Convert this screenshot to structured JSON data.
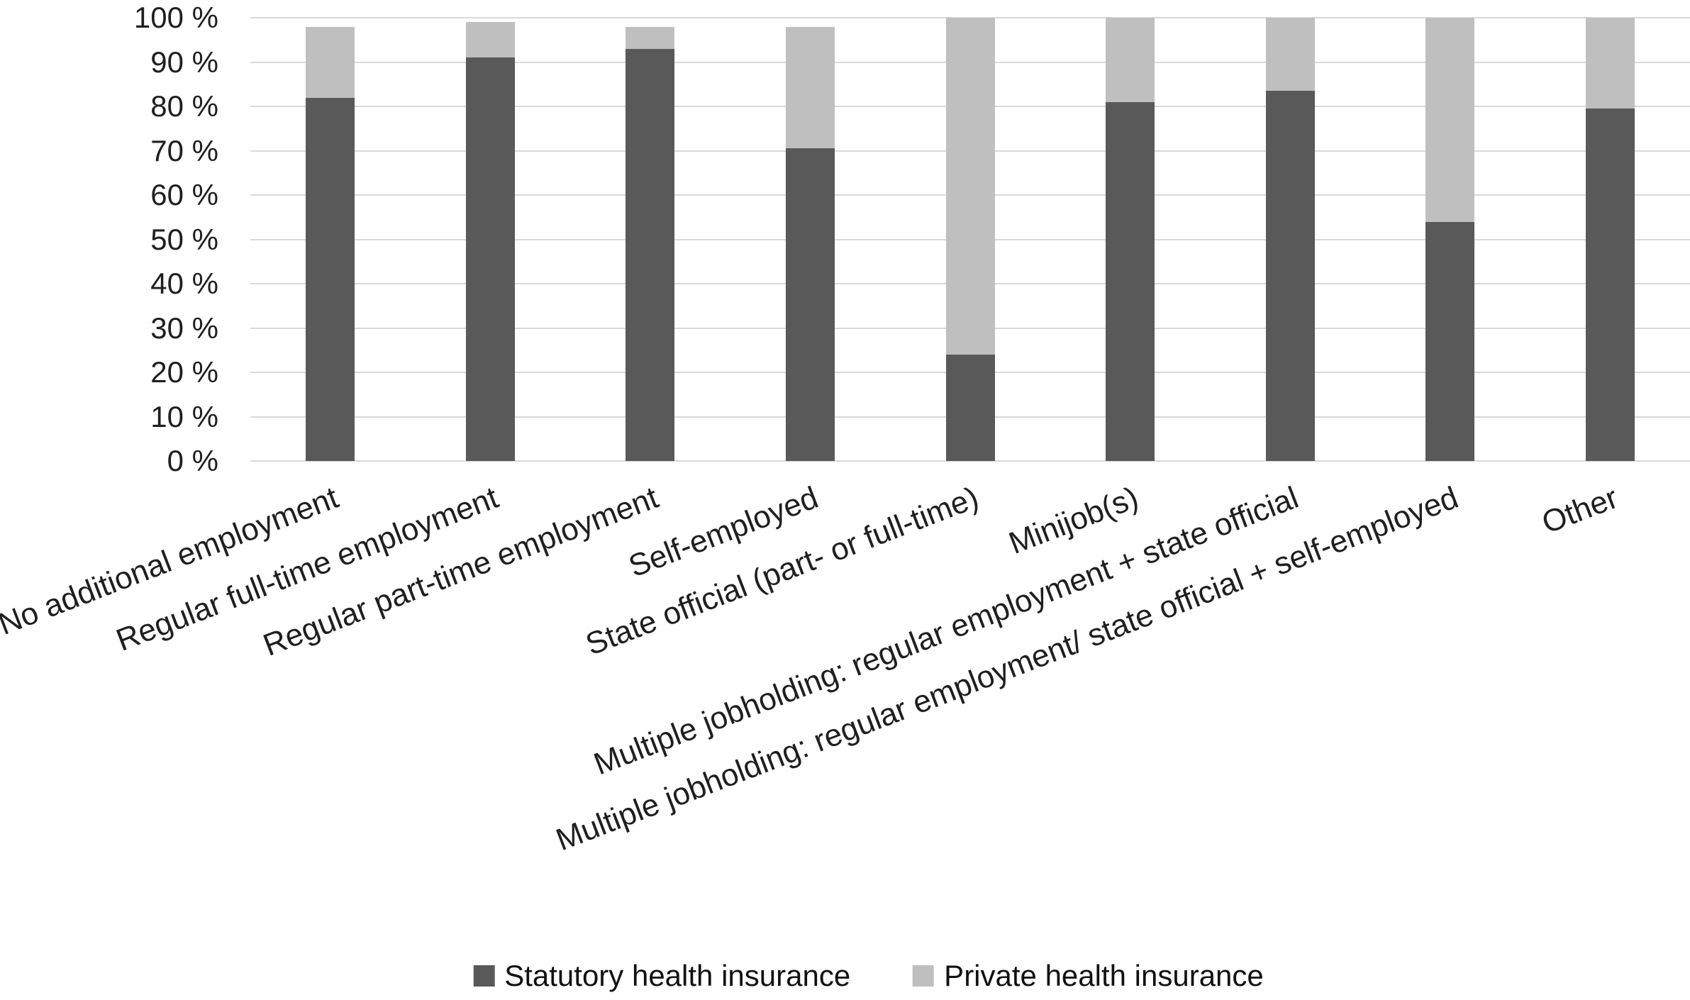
{
  "chart_data": {
    "type": "bar",
    "stacked": true,
    "grid": true,
    "legend_position": "bottom",
    "title": "",
    "xlabel": "",
    "ylabel": "",
    "ylim": [
      0,
      100
    ],
    "ytick_labels": [
      "0 %",
      "10 %",
      "20 %",
      "30 %",
      "40 %",
      "50 %",
      "60 %",
      "70 %",
      "80 %",
      "90 %",
      "100 %"
    ],
    "categories": [
      "No additional employment",
      "Regular full-time employment",
      "Regular part-time employment",
      "Self-employed",
      "State official (part- or full-time)",
      "Minijob(s)",
      "Multiple jobholding: regular employment + state official",
      "Multiple jobholding: regular employment/ state official + self-employed",
      "Other"
    ],
    "series": [
      {
        "name": "Statutory health insurance",
        "color": "#595959",
        "values": [
          82,
          91,
          93,
          70.5,
          24,
          81,
          83.5,
          54,
          79.5
        ]
      },
      {
        "name": "Private health insurance",
        "color": "#bfbfbf",
        "values": [
          16,
          8,
          5,
          27.5,
          76,
          19,
          16.5,
          46,
          20.5
        ]
      }
    ],
    "stack_totals": [
      98,
      99,
      98,
      98,
      100,
      100,
      100,
      100,
      100
    ],
    "gridline_color": "#d9d9d9",
    "text_color": "#1f1f1f",
    "background_color": "#ffffff"
  }
}
